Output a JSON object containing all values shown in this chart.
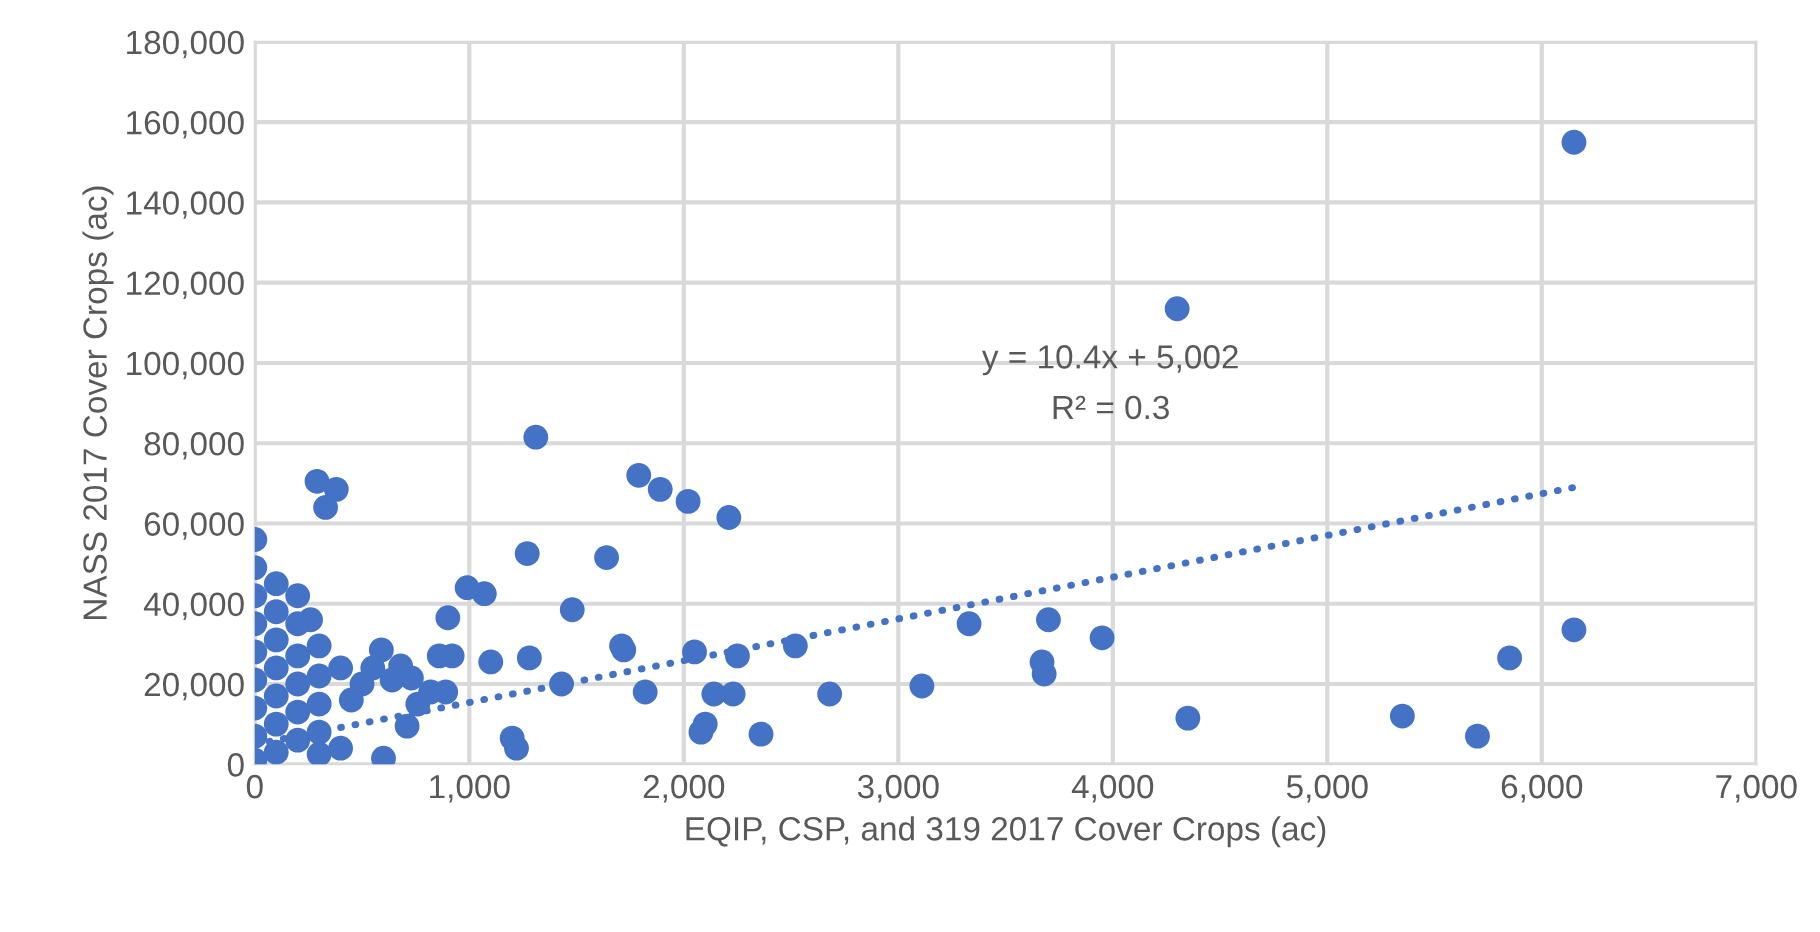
{
  "chart_data": {
    "type": "scatter",
    "xlabel": "EQIP, CSP, and 319 2017 Cover Crops (ac)",
    "ylabel": "NASS 2017 Cover Crops (ac)",
    "xlim": [
      0,
      7000
    ],
    "xticks": [
      {
        "value": 0,
        "label": "0"
      },
      {
        "value": 1000,
        "label": "1,000"
      },
      {
        "value": 2000,
        "label": "2,000"
      },
      {
        "value": 3000,
        "label": "3,000"
      },
      {
        "value": 4000,
        "label": "4,000"
      },
      {
        "value": 5000,
        "label": "5,000"
      },
      {
        "value": 6000,
        "label": "6,000"
      },
      {
        "value": 7000,
        "label": "7,000"
      }
    ],
    "ylim": [
      0,
      180000
    ],
    "yticks": [
      {
        "value": 0,
        "label": "0"
      },
      {
        "value": 20000,
        "label": "20,000"
      },
      {
        "value": 40000,
        "label": "40,000"
      },
      {
        "value": 60000,
        "label": "60,000"
      },
      {
        "value": 80000,
        "label": "80,000"
      },
      {
        "value": 100000,
        "label": "100,000"
      },
      {
        "value": 120000,
        "label": "120,000"
      },
      {
        "value": 140000,
        "label": "140,000"
      },
      {
        "value": 160000,
        "label": "160,000"
      },
      {
        "value": 180000,
        "label": "180,000"
      }
    ],
    "grid": true,
    "legend": false,
    "marker": "circle",
    "annotations": [
      "y = 10.4x + 5,002",
      "R² = 0.3"
    ],
    "series": [
      {
        "color": "#4472c4",
        "x": [
          6150,
          4300,
          6150,
          5850,
          5700,
          5350,
          4350,
          3950,
          3700,
          3680,
          3670,
          3330,
          3110,
          2680,
          2520,
          2360,
          2250,
          2230,
          2140,
          2100,
          2080,
          2050,
          2210,
          2020,
          1890,
          1790,
          1820,
          1720,
          1710,
          1640,
          1480,
          1430,
          1310,
          1280,
          1270,
          1220,
          1200,
          1100,
          1070,
          990,
          900,
          920,
          890,
          860,
          820,
          760,
          730,
          710,
          680,
          640,
          600,
          590,
          550,
          500,
          450,
          380,
          330,
          290,
          260,
          0,
          0,
          0,
          0,
          0,
          0,
          0,
          0,
          0,
          100,
          100,
          100,
          100,
          100,
          100,
          100,
          200,
          200,
          200,
          200,
          200,
          200,
          300,
          300,
          300,
          300,
          300,
          400,
          400
        ],
        "values": [
          155000,
          113500,
          33500,
          26500,
          7000,
          12000,
          11500,
          31500,
          36000,
          22500,
          25500,
          35000,
          19500,
          17500,
          29500,
          7500,
          27000,
          17500,
          17500,
          10000,
          8000,
          28000,
          61500,
          65500,
          68500,
          72000,
          18000,
          28500,
          29500,
          51500,
          38500,
          20000,
          81500,
          26500,
          52500,
          4000,
          6500,
          25500,
          42500,
          44000,
          36500,
          27000,
          18000,
          27000,
          18000,
          15000,
          21500,
          9500,
          24500,
          21000,
          1500,
          28500,
          24000,
          20000,
          16000,
          68500,
          64000,
          70500,
          36000,
          56000,
          49000,
          42000,
          35000,
          28000,
          21000,
          14000,
          7000,
          1000,
          45000,
          38000,
          31000,
          24000,
          17000,
          10000,
          3000,
          42000,
          35000,
          27000,
          20000,
          13000,
          6000,
          29500,
          22000,
          15000,
          8000,
          2500,
          24000,
          4000
        ]
      },
      {
        "type": "line",
        "color": "#4472c4",
        "line_style": "dotted",
        "marker": "none",
        "x": [
          0,
          6150
        ],
        "values": [
          5000,
          69000
        ]
      }
    ]
  }
}
